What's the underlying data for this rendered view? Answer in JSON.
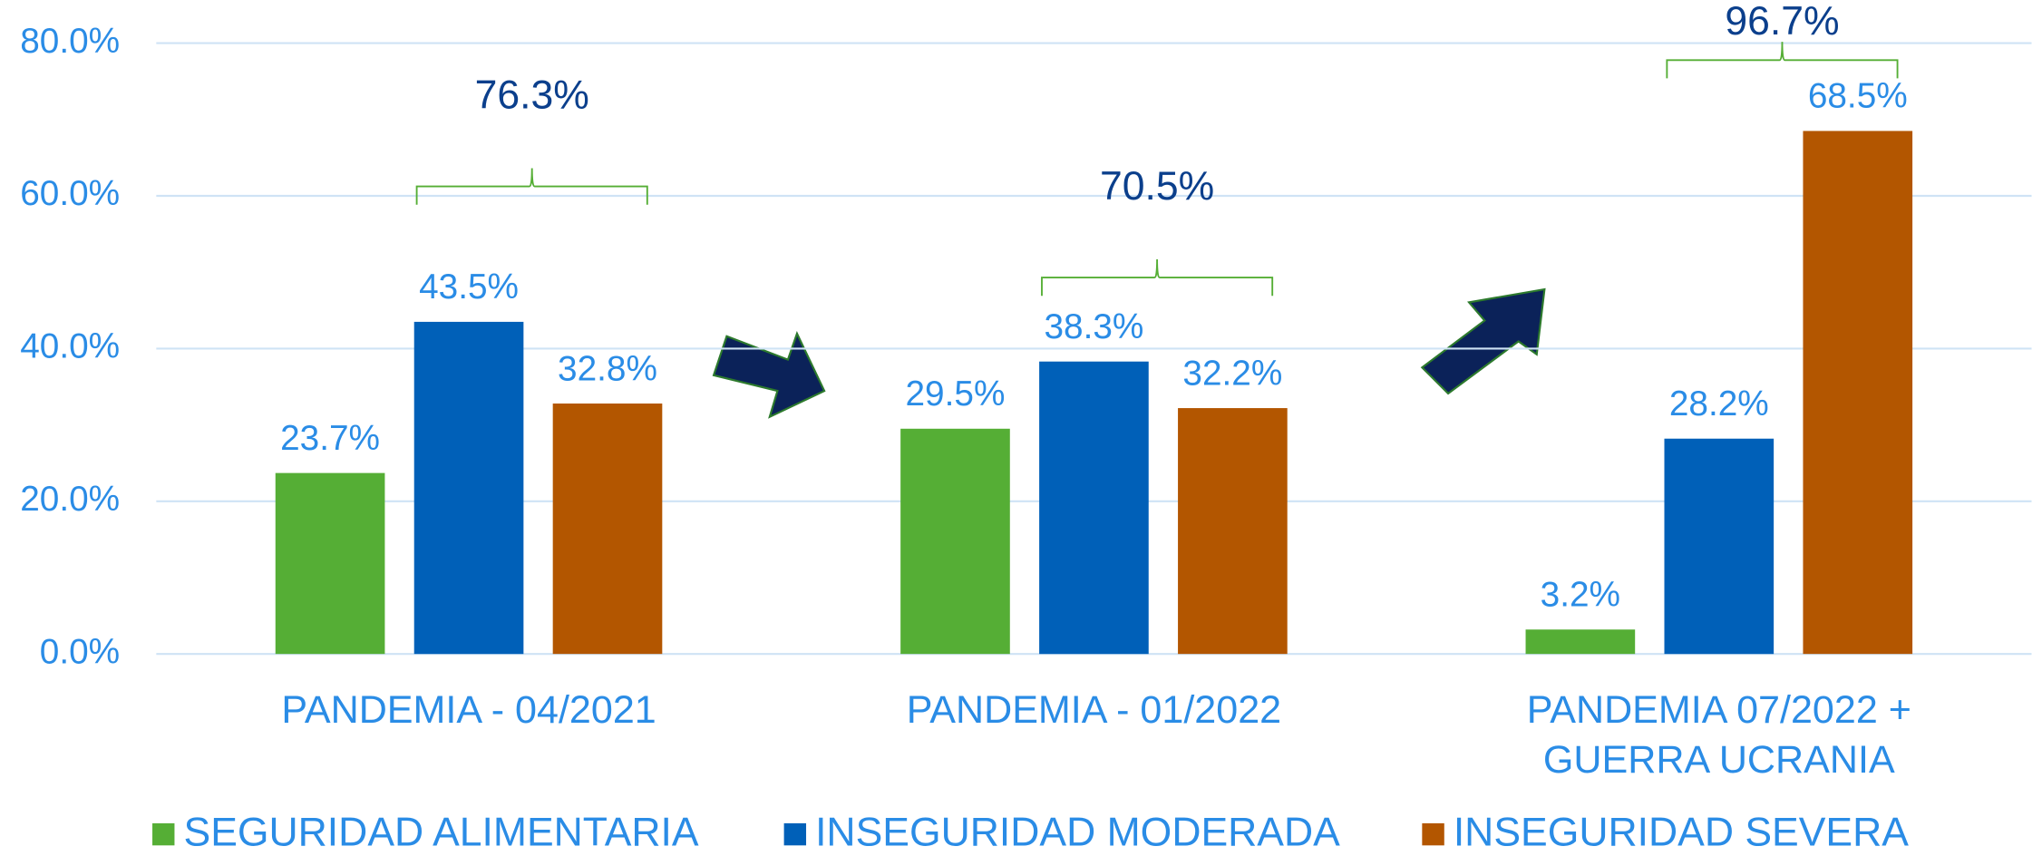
{
  "chart_data": {
    "type": "bar",
    "categories": [
      [
        "PANDEMIA - 04/2021"
      ],
      [
        "PANDEMIA - 01/2022"
      ],
      [
        "PANDEMIA 07/2022 +",
        "GUERRA UCRANIA"
      ]
    ],
    "series": [
      {
        "name": "SEGURIDAD ALIMENTARIA",
        "color": "#55ae35",
        "values": [
          23.7,
          29.5,
          3.2
        ],
        "value_labels": [
          "23.7%",
          "29.5%",
          "3.2%"
        ]
      },
      {
        "name": "INSEGURIDAD MODERADA",
        "color": "#0060b8",
        "values": [
          43.5,
          38.3,
          28.2
        ],
        "value_labels": [
          "43.5%",
          "38.3%",
          "28.2%"
        ]
      },
      {
        "name": "INSEGURIDAD SEVERA",
        "color": "#b35600",
        "values": [
          32.8,
          32.2,
          68.5
        ],
        "value_labels": [
          "32.8%",
          "32.2%",
          "68.5%"
        ]
      }
    ],
    "group_totals": {
      "values": [
        76.3,
        70.5,
        96.7
      ],
      "value_labels": [
        "76.3%",
        "70.5%",
        "96.7%"
      ]
    },
    "ylim": [
      0,
      80
    ],
    "yticks": [
      {
        "value": 0,
        "label": "0.0%"
      },
      {
        "value": 20,
        "label": "20.0%"
      },
      {
        "value": 40,
        "label": "40.0%"
      },
      {
        "value": 60,
        "label": "60.0%"
      },
      {
        "value": 80,
        "label": "80.0%"
      }
    ],
    "grid": true,
    "legend": "bottom"
  }
}
